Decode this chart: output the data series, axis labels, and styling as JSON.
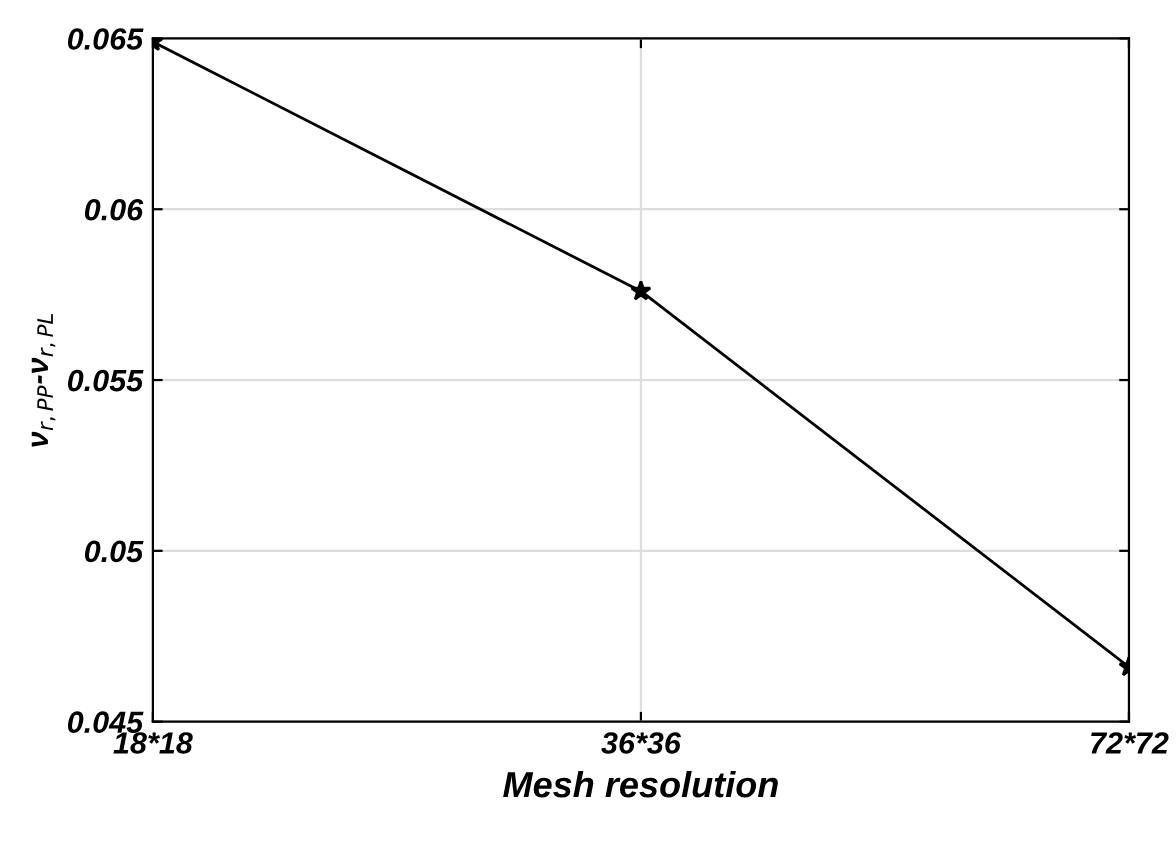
{
  "chart_data": {
    "type": "line",
    "xlabel": "Mesh resolution",
    "ylabel": "ν$_{r,PP}$-ν$_{r,PL}$",
    "categories": [
      "18*18",
      "36*36",
      "72*72"
    ],
    "series": [
      {
        "color": "#000000",
        "values": [
          0.0649,
          0.0576,
          0.0466
        ]
      }
    ],
    "ylim": [
      0.045,
      0.065
    ],
    "yticks": [
      0.045,
      0.05,
      0.055,
      0.06,
      0.065
    ],
    "grid": true,
    "marker": "star",
    "line_style": "solid"
  }
}
